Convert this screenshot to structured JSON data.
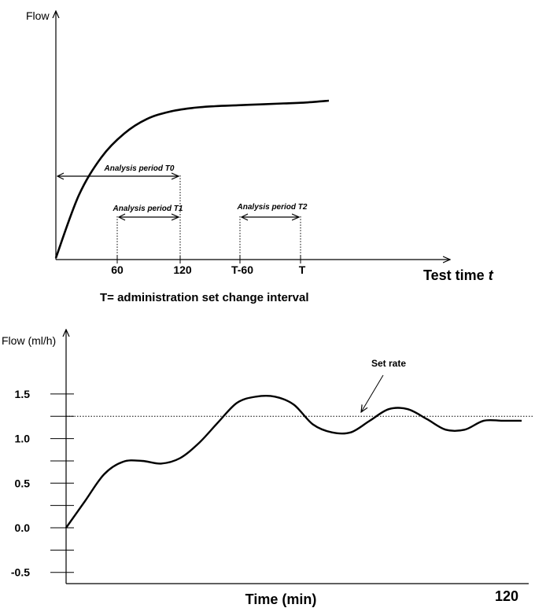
{
  "chart_data": [
    {
      "type": "line",
      "title": "",
      "ylabel": "Flow",
      "xlabel": "Test time",
      "xlabel_var": "t",
      "x_ticks": [
        "60",
        "120",
        "T-60",
        "T"
      ],
      "periods": [
        {
          "label": "Analysis period T0",
          "from": "0",
          "to": "120"
        },
        {
          "label": "Analysis period T1",
          "from": "60",
          "to": "120"
        },
        {
          "label": "Analysis period T2",
          "from": "T-60",
          "to": "T"
        }
      ],
      "note": "T= administration set change interval",
      "series": [
        {
          "values": [
            0,
            0.34,
            0.55,
            0.68,
            0.76,
            0.8,
            0.82,
            0.83,
            0.835,
            0.84,
            0.845,
            0.85,
            0.86
          ]
        }
      ]
    },
    {
      "type": "line",
      "title": "",
      "ylabel": "Flow (ml/h)",
      "xlabel": "Time (min)",
      "x_end_label": "120",
      "ylim": [
        -0.5,
        1.75
      ],
      "y_ticks": [
        -0.5,
        0.0,
        0.5,
        1.0,
        1.5
      ],
      "y_tick_labels": [
        "-0.5",
        "0.0",
        "0.5",
        "1.0",
        "1.5"
      ],
      "set_rate": 1.25,
      "set_rate_label": "Set rate",
      "x": [
        0,
        5,
        10,
        15,
        20,
        25,
        30,
        35,
        40,
        45,
        50,
        55,
        60,
        65,
        70,
        75,
        80,
        85,
        90,
        95,
        100,
        105,
        110,
        115,
        120
      ],
      "series": [
        {
          "values": [
            0.0,
            0.3,
            0.6,
            0.74,
            0.75,
            0.72,
            0.78,
            0.95,
            1.18,
            1.4,
            1.47,
            1.47,
            1.38,
            1.16,
            1.07,
            1.07,
            1.2,
            1.33,
            1.33,
            1.22,
            1.1,
            1.1,
            1.2,
            1.2,
            1.2
          ]
        }
      ]
    }
  ]
}
